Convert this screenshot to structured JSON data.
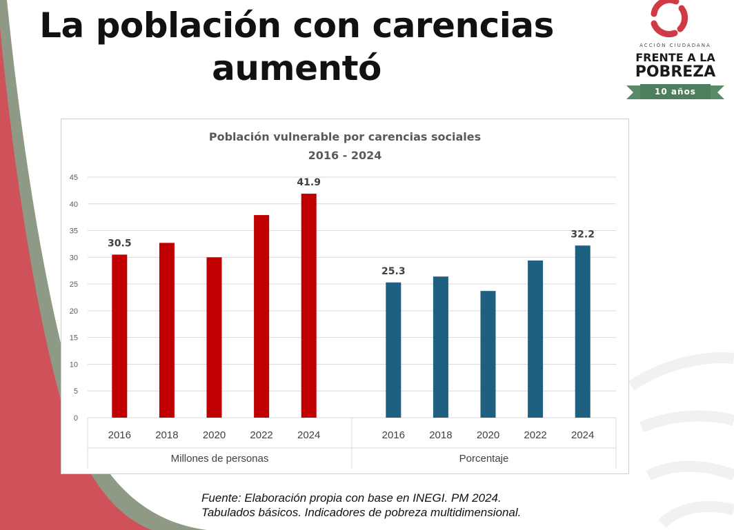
{
  "slide": {
    "title_line1": "La población con carencias",
    "title_line2": "aumentó",
    "source_line1": "Fuente: Elaboración propia con base en INEGI. PM 2024.",
    "source_line2": "Tabulados básicos. Indicadores de pobreza multidimensional."
  },
  "logo": {
    "small_text": "ACCIÓN CIUDADANA",
    "line1": "FRENTE A LA",
    "line2": "POBREZA",
    "years": "10 años",
    "icon": "hands-circle-icon"
  },
  "colors": {
    "red": "#c00000",
    "blue": "#1f5f80",
    "side_red": "#cf525a",
    "side_green": "#8e9a85",
    "logo_red": "#d03a45",
    "logo_green": "#5a8a6a"
  },
  "chart_data": {
    "type": "bar",
    "title": "Población vulnerable por carencias sociales",
    "subtitle": "2016 - 2024",
    "ylim": [
      0,
      45
    ],
    "yticks": [
      "0",
      "5",
      "10",
      "15",
      "20",
      "25",
      "30",
      "35",
      "40",
      "45"
    ],
    "grid": true,
    "groups": [
      {
        "label": "Millones de personas",
        "categories": [
          "2016",
          "2018",
          "2020",
          "2022",
          "2024"
        ],
        "values": [
          30.5,
          32.7,
          30.0,
          37.9,
          41.9
        ],
        "data_labels": [
          "30.5",
          "",
          "",
          "",
          "41.9"
        ],
        "color": "#c00000"
      },
      {
        "label": "Porcentaje",
        "categories": [
          "2016",
          "2018",
          "2020",
          "2022",
          "2024"
        ],
        "values": [
          25.3,
          26.4,
          23.7,
          29.4,
          32.2
        ],
        "data_labels": [
          "25.3",
          "",
          "",
          "",
          "32.2"
        ],
        "color": "#1f5f80"
      }
    ]
  }
}
